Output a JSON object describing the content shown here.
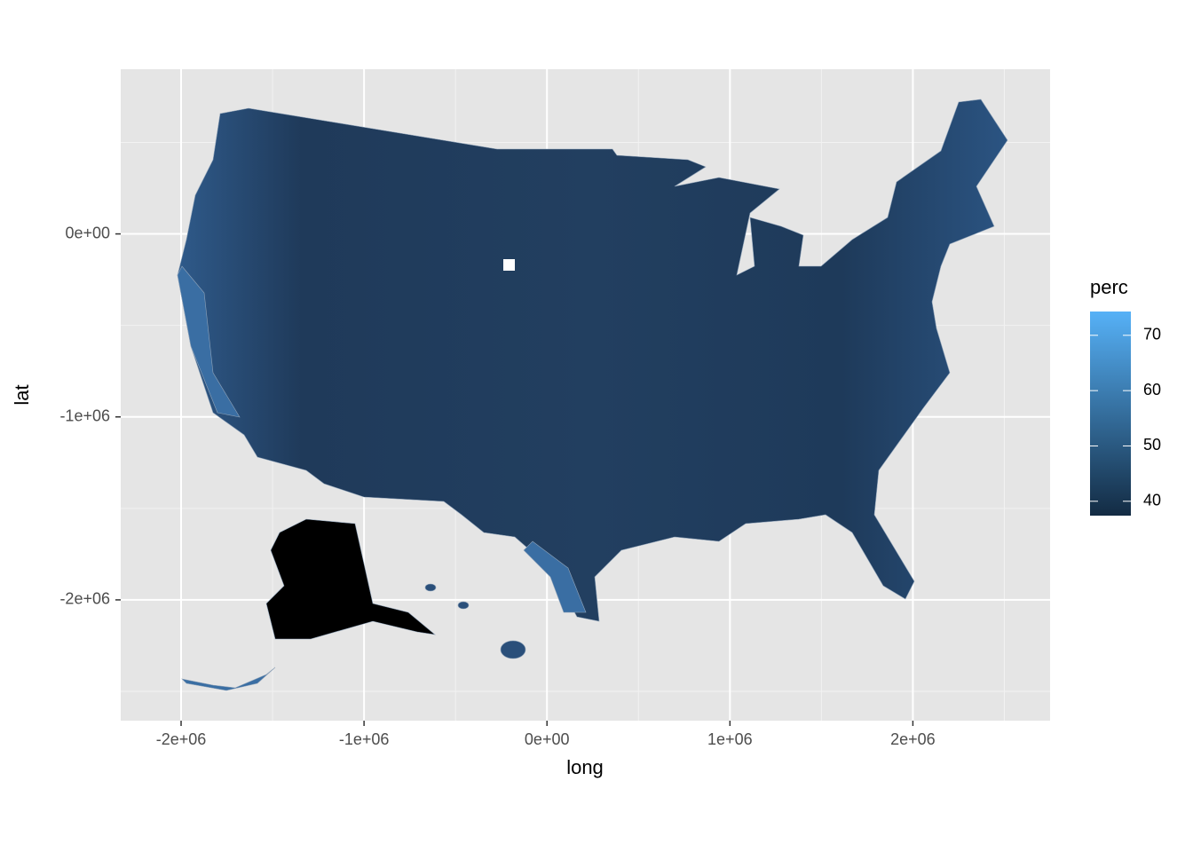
{
  "chart_data": {
    "type": "map",
    "x_label": "long",
    "y_label": "lat",
    "xlim": [
      -2330000,
      2750000
    ],
    "ylim": [
      -2660000,
      900000
    ],
    "xticks": [
      {
        "value": -2000000,
        "label": "-2e+06"
      },
      {
        "value": -1000000,
        "label": "-1e+06"
      },
      {
        "value": 0,
        "label": "0e+00"
      },
      {
        "value": 1000000,
        "label": "1e+06"
      },
      {
        "value": 2000000,
        "label": "2e+06"
      }
    ],
    "yticks": [
      {
        "value": -2000000,
        "label": "-2e+06"
      },
      {
        "value": -1000000,
        "label": "-1e+06"
      },
      {
        "value": 0,
        "label": "0e+00"
      }
    ],
    "xminor": [
      -1500000,
      -500000,
      500000,
      1500000,
      2500000
    ],
    "yminor": [
      500000,
      -500000,
      -1500000,
      -2500000
    ],
    "grid": true,
    "legend": {
      "title": "perc",
      "limits": [
        37.4,
        74.3
      ],
      "ticks": [
        40,
        50,
        60,
        70
      ],
      "low_color": "#132B43",
      "high_color": "#56B1F7"
    }
  }
}
